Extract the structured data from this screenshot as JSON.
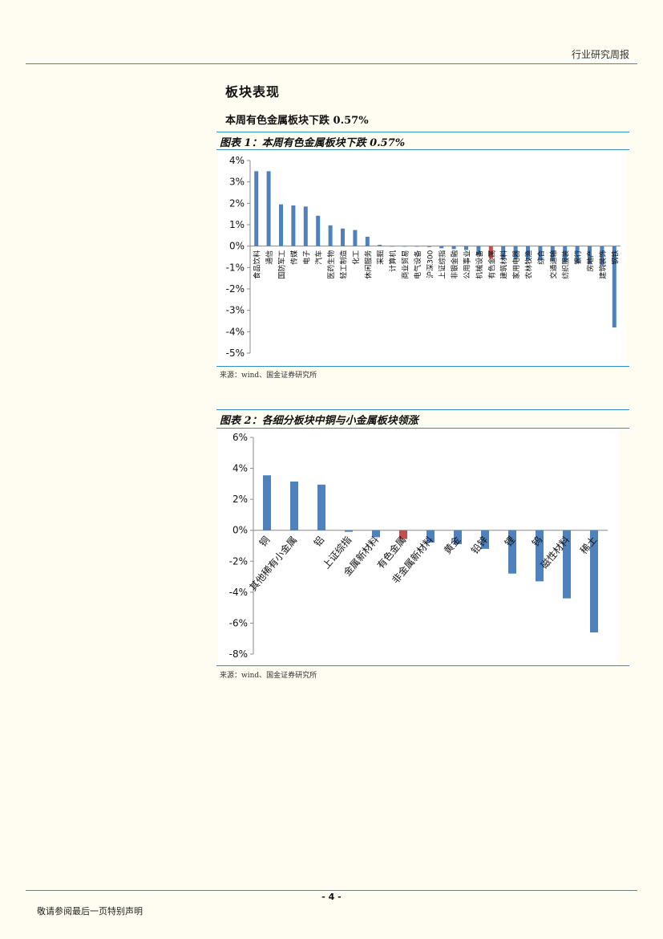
{
  "header": {
    "report_type": "行业研究周报"
  },
  "section": {
    "title": "板块表现",
    "subtitle": "本周有色金属板块下跌 0.57%"
  },
  "figure1": {
    "title": "图表 1：本周有色金属板块下跌 0.57%",
    "source": "来源：wind、国金证券研究所"
  },
  "figure2": {
    "title": "图表 2：各细分板块中铜与小金属板块领涨",
    "source": "来源：wind、国金证券研究所"
  },
  "colors": {
    "bar": "#4f81bd",
    "highlight": "#c0504d",
    "rule": "#2e8fc8"
  },
  "chart_data": [
    {
      "type": "bar",
      "title": "",
      "ylim": [
        -5,
        4
      ],
      "yticks": [
        "4%",
        "3%",
        "2%",
        "1%",
        "0%",
        "-1%",
        "-2%",
        "-3%",
        "-4%",
        "-5%"
      ],
      "highlight": "有色金属",
      "categories": [
        "食品饮料",
        "通信",
        "国防军工",
        "传媒",
        "电子",
        "汽车",
        "医药生物",
        "轻工制造",
        "化工",
        "休闲服务",
        "采掘",
        "计算机",
        "商业贸易",
        "电气设备",
        "沪深300",
        "上证综指",
        "非银金融",
        "公用事业",
        "机械设备",
        "有色金属",
        "建筑材料",
        "家用电器",
        "农林牧渔",
        "综合",
        "交通运输",
        "纺织服装",
        "银行",
        "房地产",
        "建筑装饰",
        "钢铁"
      ],
      "values": [
        3.5,
        3.5,
        1.95,
        1.9,
        1.85,
        1.42,
        0.97,
        0.82,
        0.75,
        0.44,
        0.06,
        0.0,
        0.0,
        0.0,
        -0.04,
        -0.1,
        -0.14,
        -0.18,
        -0.4,
        -0.57,
        -0.6,
        -0.62,
        -0.64,
        -0.66,
        -0.7,
        -0.74,
        -0.78,
        -0.85,
        -0.9,
        -3.8
      ]
    },
    {
      "type": "bar",
      "title": "",
      "ylim": [
        -8,
        6
      ],
      "yticks": [
        "6%",
        "4%",
        "2%",
        "0%",
        "-2%",
        "-4%",
        "-6%",
        "-8%"
      ],
      "highlight": "有色金属",
      "categories": [
        "铜",
        "其他稀有小金属",
        "铝",
        "上证综指",
        "金属新材料",
        "有色金属",
        "非金属新材料",
        "黄金",
        "铅锌",
        "锂",
        "钨",
        "磁性材料",
        "稀土"
      ],
      "values": [
        3.55,
        3.15,
        2.95,
        -0.1,
        -0.45,
        -0.57,
        -0.8,
        -0.9,
        -1.2,
        -2.8,
        -3.3,
        -4.4,
        -6.6
      ]
    }
  ],
  "footer": {
    "page_number": "- 4 -",
    "disclaimer": "敬请参阅最后一页特别声明"
  }
}
